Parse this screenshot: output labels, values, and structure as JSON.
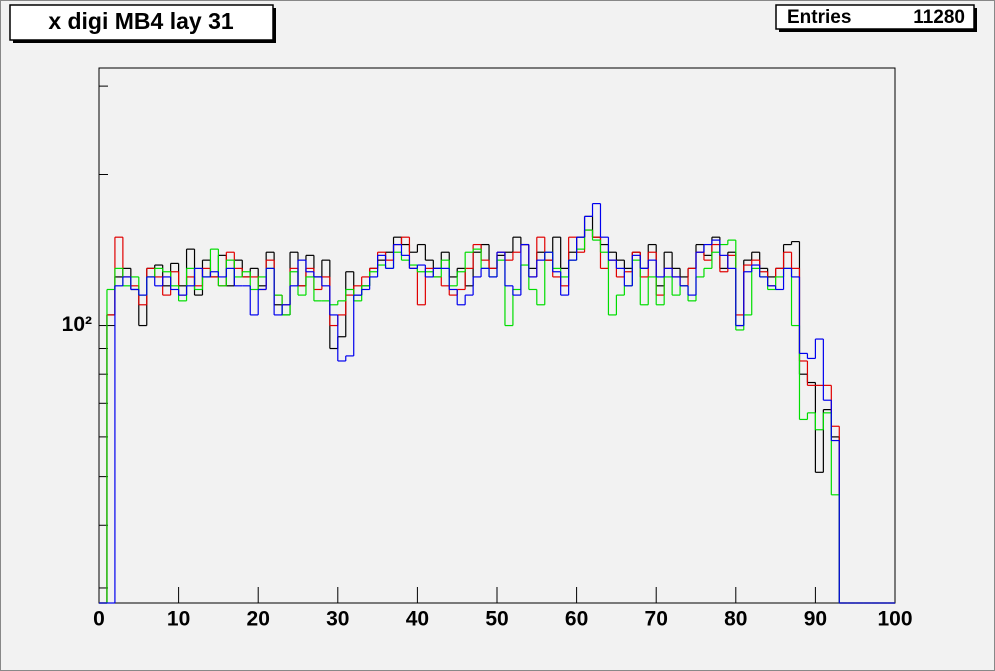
{
  "chart_data": {
    "type": "histogram",
    "title": "x digi MB4 lay 31",
    "stats": {
      "label": "Entries",
      "value": 11280
    },
    "log_y": true,
    "xlim": [
      0,
      100
    ],
    "ylim": [
      28,
      326
    ],
    "xticks": [
      0,
      10,
      20,
      30,
      40,
      50,
      60,
      70,
      80,
      90,
      100
    ],
    "yticks": [
      {
        "value": 100,
        "label": "10²"
      }
    ],
    "yminor": [
      30,
      40,
      50,
      60,
      70,
      80,
      90,
      200,
      300
    ],
    "bins": [
      0,
      1,
      2,
      3,
      4,
      5,
      6,
      7,
      8,
      9,
      10,
      11,
      12,
      13,
      14,
      15,
      16,
      17,
      18,
      19,
      20,
      21,
      22,
      23,
      24,
      25,
      26,
      27,
      28,
      29,
      30,
      31,
      32,
      33,
      34,
      35,
      36,
      37,
      38,
      39,
      40,
      41,
      42,
      43,
      44,
      45,
      46,
      47,
      48,
      49,
      50,
      51,
      52,
      53,
      54,
      55,
      56,
      57,
      58,
      59,
      60,
      61,
      62,
      63,
      64,
      65,
      66,
      67,
      68,
      69,
      70,
      71,
      72,
      73,
      74,
      75,
      76,
      77,
      78,
      79,
      80,
      81,
      82,
      83,
      84,
      85,
      86,
      87,
      88,
      89,
      90,
      91,
      92,
      93,
      94,
      95,
      96,
      97,
      98,
      99,
      100
    ],
    "series": [
      {
        "color": "#000000",
        "values": [
          0,
          105,
          125,
          130,
          118,
          100,
          130,
          132,
          120,
          133,
          120,
          142,
          115,
          135,
          125,
          138,
          120,
          135,
          125,
          130,
          120,
          140,
          110,
          105,
          140,
          120,
          138,
          125,
          135,
          90,
          95,
          128,
          115,
          120,
          130,
          135,
          140,
          150,
          145,
          140,
          145,
          135,
          130,
          140,
          125,
          130,
          120,
          140,
          145,
          130,
          138,
          140,
          150,
          145,
          130,
          140,
          135,
          150,
          130,
          140,
          150,
          165,
          150,
          145,
          140,
          135,
          130,
          140,
          130,
          145,
          120,
          140,
          130,
          125,
          130,
          145,
          138,
          150,
          130,
          140,
          100,
          135,
          140,
          130,
          125,
          130,
          145,
          147,
          80,
          77,
          51,
          68,
          60,
          0,
          0,
          0,
          0,
          0,
          0,
          0
        ]
      },
      {
        "color": "#e00000",
        "values": [
          0,
          105,
          150,
          125,
          120,
          110,
          130,
          125,
          115,
          128,
          115,
          125,
          120,
          130,
          125,
          120,
          140,
          130,
          125,
          125,
          118,
          135,
          115,
          110,
          130,
          120,
          130,
          118,
          125,
          100,
          105,
          115,
          120,
          125,
          130,
          140,
          135,
          145,
          150,
          130,
          110,
          130,
          125,
          120,
          115,
          118,
          130,
          145,
          135,
          130,
          140,
          135,
          140,
          145,
          125,
          150,
          135,
          125,
          120,
          150,
          140,
          155,
          150,
          130,
          135,
          125,
          128,
          140,
          125,
          140,
          115,
          130,
          125,
          120,
          130,
          140,
          135,
          145,
          128,
          138,
          105,
          132,
          135,
          128,
          120,
          130,
          140,
          130,
          85,
          76,
          76,
          76,
          63,
          0,
          0,
          0,
          0,
          0,
          0,
          0
        ]
      },
      {
        "color": "#00dd00",
        "values": [
          0,
          118,
          130,
          120,
          125,
          115,
          125,
          130,
          128,
          120,
          112,
          130,
          118,
          125,
          142,
          120,
          135,
          125,
          128,
          118,
          125,
          130,
          115,
          105,
          128,
          115,
          125,
          112,
          112,
          110,
          112,
          118,
          112,
          120,
          128,
          132,
          130,
          140,
          135,
          132,
          128,
          128,
          125,
          135,
          120,
          128,
          140,
          142,
          130,
          125,
          135,
          100,
          118,
          132,
          118,
          110,
          140,
          130,
          125,
          135,
          142,
          155,
          148,
          140,
          105,
          115,
          120,
          135,
          110,
          125,
          110,
          125,
          115,
          120,
          112,
          125,
          130,
          140,
          145,
          148,
          98,
          105,
          130,
          125,
          118,
          125,
          130,
          100,
          65,
          67,
          62,
          67,
          46,
          0,
          0,
          0,
          0,
          0,
          0,
          0
        ]
      },
      {
        "color": "#0000ee",
        "values": [
          0,
          0,
          120,
          125,
          118,
          115,
          125,
          120,
          125,
          118,
          115,
          120,
          130,
          125,
          128,
          125,
          130,
          120,
          120,
          105,
          118,
          130,
          105,
          110,
          120,
          135,
          128,
          125,
          120,
          105,
          85,
          87,
          115,
          118,
          125,
          138,
          130,
          145,
          138,
          130,
          132,
          125,
          130,
          130,
          118,
          110,
          115,
          125,
          130,
          125,
          140,
          120,
          115,
          145,
          125,
          135,
          140,
          128,
          115,
          135,
          150,
          165,
          175,
          150,
          135,
          130,
          120,
          138,
          130,
          135,
          125,
          130,
          125,
          120,
          115,
          140,
          145,
          148,
          138,
          130,
          100,
          128,
          132,
          125,
          120,
          118,
          130,
          125,
          88,
          86,
          94,
          71,
          59,
          0,
          0,
          0,
          0,
          0,
          0,
          0
        ]
      }
    ]
  }
}
